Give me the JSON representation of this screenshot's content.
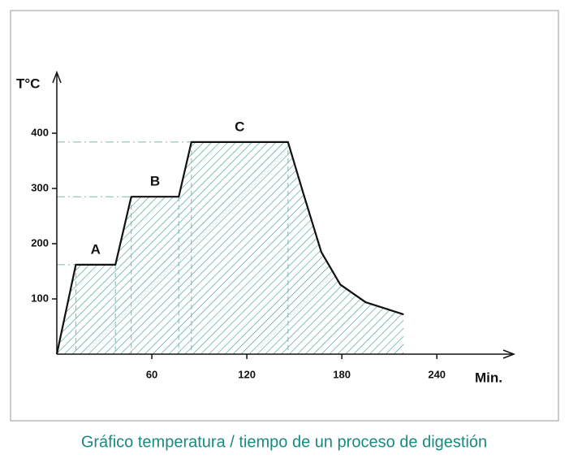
{
  "chart_data": {
    "type": "area",
    "caption": "Gráfico temperatura / tiempo de un proceso de digestión",
    "y_label": "T°C",
    "x_label": "Min.",
    "x": [
      0,
      12,
      37,
      47,
      77,
      85,
      146,
      156,
      167,
      179,
      195,
      219
    ],
    "series": [
      {
        "values": [
          0,
          162,
          162,
          285,
          285,
          384,
          384,
          288,
          185,
          126,
          94,
          72
        ],
        "color": "#2e8b7d"
      }
    ],
    "plateau_labels": [
      "A",
      "B",
      "C"
    ],
    "xlim": [
      0,
      285
    ],
    "ylim": [
      0,
      500
    ],
    "xticks": [
      60,
      120,
      180,
      240
    ],
    "yticks": [
      100,
      200,
      300,
      400
    ]
  }
}
